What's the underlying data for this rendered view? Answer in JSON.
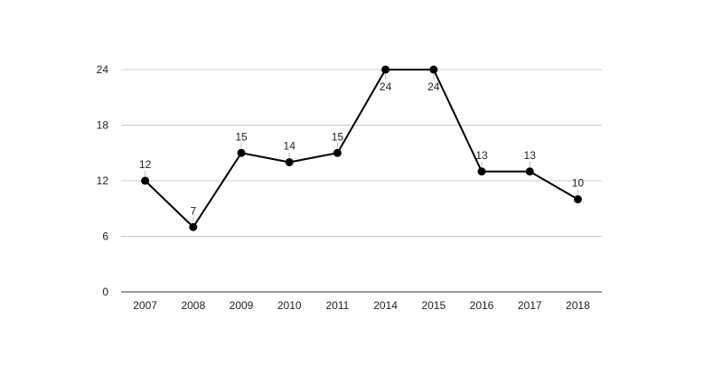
{
  "chart_data": {
    "type": "line",
    "categories": [
      "2007",
      "2008",
      "2009",
      "2010",
      "2011",
      "2014",
      "2015",
      "2016",
      "2017",
      "2018"
    ],
    "values": [
      12,
      7,
      15,
      14,
      15,
      24,
      24,
      13,
      13,
      10
    ],
    "data_labels": [
      "12",
      "7",
      "15",
      "14",
      "15",
      "24",
      "24",
      "13",
      "13",
      "10"
    ],
    "y_ticks": [
      "0",
      "6",
      "12",
      "18",
      "24"
    ],
    "ylim": [
      0,
      24
    ],
    "y_tick_values": [
      0,
      6,
      12,
      18,
      24
    ],
    "grid": true,
    "legend": "none",
    "colors": {
      "line": "#000000",
      "grid": "#cccccc",
      "axis": "#333333"
    }
  }
}
